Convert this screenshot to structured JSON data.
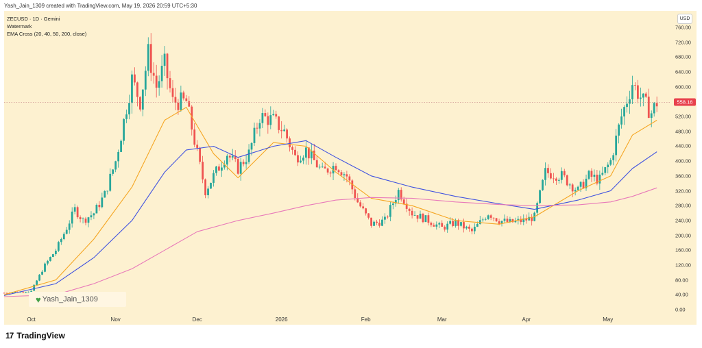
{
  "header": {
    "credit": "Yash_Jain_1309 created with TradingView.com, May 19, 2026 20:59 UTC+5:30"
  },
  "legend": {
    "symbol": "ZECUSD · 1D · Gemini",
    "watermark": "Watermark",
    "indicator": "EMA Cross (20, 40, 50, 200, close)"
  },
  "currency_button": "USD",
  "watermark_text": "Yash_Jain_1309",
  "brand": {
    "logo": "17",
    "name": "TradingView"
  },
  "colors": {
    "up": "#26a69a",
    "down": "#ef5350",
    "ema_fast": "#f5a623",
    "ema_mid": "#3f51e0",
    "ema_slow": "#e879b9",
    "last_price_tag": "#e8414d",
    "background": "#fdf1d0"
  },
  "chart_data": {
    "type": "line",
    "title": "ZECUSD · 1D · Gemini",
    "ylim": [
      0,
      760
    ],
    "y_ticks": [
      "760.00",
      "720.00",
      "680.00",
      "640.00",
      "600.00",
      "560.00",
      "520.00",
      "480.00",
      "440.00",
      "400.00",
      "360.00",
      "320.00",
      "280.00",
      "240.00",
      "200.00",
      "160.00",
      "120.00",
      "80.00",
      "40.00",
      "0.00"
    ],
    "y_tick_values": [
      760,
      720,
      680,
      640,
      600,
      560,
      520,
      480,
      440,
      400,
      360,
      320,
      280,
      240,
      200,
      160,
      120,
      80,
      40,
      0
    ],
    "last_price": 558.16,
    "last_price_label": "558.16",
    "x_labels": [
      "Oct",
      "Nov",
      "Dec",
      "2026",
      "Feb",
      "Mar",
      "Apr",
      "May"
    ],
    "x_label_dates": [
      "2025-10-01",
      "2025-11-01",
      "2025-12-01",
      "2026-01-01",
      "2026-02-01",
      "2026-03-01",
      "2026-04-01",
      "2026-05-01"
    ],
    "price_path": [
      [
        "2025-09-21",
        45
      ],
      [
        "2025-10-01",
        50
      ],
      [
        "2025-10-06",
        120
      ],
      [
        "2025-10-10",
        160
      ],
      [
        "2025-10-14",
        220
      ],
      [
        "2025-10-17",
        270
      ],
      [
        "2025-10-20",
        240
      ],
      [
        "2025-10-24",
        260
      ],
      [
        "2025-10-28",
        310
      ],
      [
        "2025-11-01",
        400
      ],
      [
        "2025-11-03",
        470
      ],
      [
        "2025-11-07",
        620
      ],
      [
        "2025-11-10",
        560
      ],
      [
        "2025-11-13",
        690
      ],
      [
        "2025-11-16",
        600
      ],
      [
        "2025-11-19",
        660
      ],
      [
        "2025-11-22",
        560
      ],
      [
        "2025-11-27",
        560
      ],
      [
        "2025-12-01",
        420
      ],
      [
        "2025-12-04",
        320
      ],
      [
        "2025-12-07",
        360
      ],
      [
        "2025-12-12",
        420
      ],
      [
        "2025-12-16",
        380
      ],
      [
        "2025-12-20",
        420
      ],
      [
        "2025-12-24",
        520
      ],
      [
        "2025-12-29",
        510
      ],
      [
        "2026-01-02",
        480
      ],
      [
        "2026-01-06",
        410
      ],
      [
        "2026-01-10",
        430
      ],
      [
        "2026-01-16",
        370
      ],
      [
        "2026-01-21",
        390
      ],
      [
        "2026-01-25",
        360
      ],
      [
        "2026-01-29",
        290
      ],
      [
        "2026-02-03",
        230
      ],
      [
        "2026-02-08",
        240
      ],
      [
        "2026-02-13",
        320
      ],
      [
        "2026-02-18",
        260
      ],
      [
        "2026-02-24",
        240
      ],
      [
        "2026-03-01",
        220
      ],
      [
        "2026-03-06",
        235
      ],
      [
        "2026-03-12",
        210
      ],
      [
        "2026-03-18",
        260
      ],
      [
        "2026-03-22",
        240
      ],
      [
        "2026-03-26",
        235
      ],
      [
        "2026-03-31",
        240
      ],
      [
        "2026-04-04",
        250
      ],
      [
        "2026-04-08",
        370
      ],
      [
        "2026-04-14",
        360
      ],
      [
        "2026-04-20",
        320
      ],
      [
        "2026-04-24",
        360
      ],
      [
        "2026-04-28",
        350
      ],
      [
        "2026-05-02",
        400
      ],
      [
        "2026-05-06",
        520
      ],
      [
        "2026-05-10",
        610
      ],
      [
        "2026-05-14",
        560
      ],
      [
        "2026-05-17",
        530
      ],
      [
        "2026-05-19",
        558
      ]
    ],
    "series": [
      {
        "values": [
          [
            "2025-09-21",
            40
          ],
          [
            "2025-10-10",
            80
          ],
          [
            "2025-10-24",
            190
          ],
          [
            "2025-11-07",
            330
          ],
          [
            "2025-11-19",
            510
          ],
          [
            "2025-11-27",
            545
          ],
          [
            "2025-12-07",
            420
          ],
          [
            "2025-12-16",
            355
          ],
          [
            "2025-12-29",
            450
          ],
          [
            "2026-01-10",
            440
          ],
          [
            "2026-01-21",
            370
          ],
          [
            "2026-02-03",
            300
          ],
          [
            "2026-02-18",
            280
          ],
          [
            "2026-03-06",
            240
          ],
          [
            "2026-03-22",
            230
          ],
          [
            "2026-04-04",
            250
          ],
          [
            "2026-04-20",
            320
          ],
          [
            "2026-05-02",
            360
          ],
          [
            "2026-05-10",
            470
          ],
          [
            "2026-05-19",
            510
          ]
        ]
      },
      {
        "values": [
          [
            "2025-09-21",
            38
          ],
          [
            "2025-10-10",
            70
          ],
          [
            "2025-10-24",
            140
          ],
          [
            "2025-11-07",
            240
          ],
          [
            "2025-11-19",
            370
          ],
          [
            "2025-11-27",
            430
          ],
          [
            "2025-12-07",
            440
          ],
          [
            "2025-12-16",
            410
          ],
          [
            "2025-12-29",
            440
          ],
          [
            "2026-01-10",
            455
          ],
          [
            "2026-01-21",
            410
          ],
          [
            "2026-02-03",
            360
          ],
          [
            "2026-02-18",
            330
          ],
          [
            "2026-03-06",
            305
          ],
          [
            "2026-03-22",
            285
          ],
          [
            "2026-04-04",
            270
          ],
          [
            "2026-04-20",
            295
          ],
          [
            "2026-05-02",
            320
          ],
          [
            "2026-05-10",
            380
          ],
          [
            "2026-05-19",
            425
          ]
        ]
      },
      {
        "values": [
          [
            "2025-09-21",
            35
          ],
          [
            "2025-10-10",
            40
          ],
          [
            "2025-10-24",
            70
          ],
          [
            "2025-11-07",
            110
          ],
          [
            "2025-11-19",
            160
          ],
          [
            "2025-12-01",
            210
          ],
          [
            "2025-12-16",
            240
          ],
          [
            "2025-12-29",
            260
          ],
          [
            "2026-01-10",
            280
          ],
          [
            "2026-01-21",
            295
          ],
          [
            "2026-02-03",
            302
          ],
          [
            "2026-02-18",
            300
          ],
          [
            "2026-03-06",
            290
          ],
          [
            "2026-03-22",
            283
          ],
          [
            "2026-04-04",
            280
          ],
          [
            "2026-04-20",
            282
          ],
          [
            "2026-05-02",
            290
          ],
          [
            "2026-05-10",
            305
          ],
          [
            "2026-05-19",
            328
          ]
        ]
      }
    ]
  }
}
